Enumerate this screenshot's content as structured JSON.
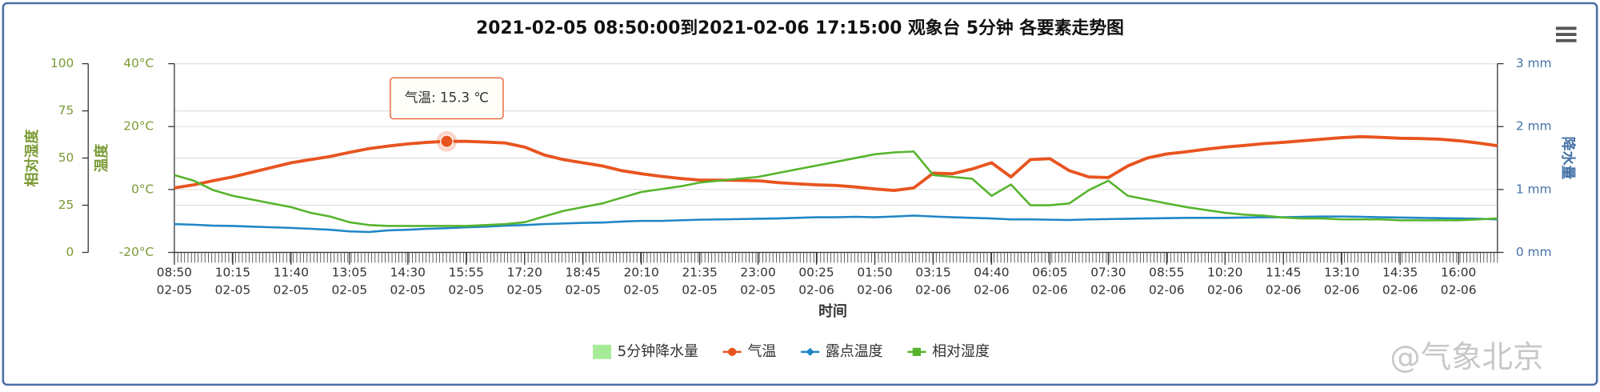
{
  "chart_data": {
    "type": "line",
    "title": "2021-02-05 08:50:00到2021-02-06 17:15:00 观象台 5分钟 各要素走势图",
    "x_label": "时间",
    "y_label": "温度",
    "y2_label": "降水量",
    "y3_label": "相对湿度",
    "categories": [
      "08:50",
      null,
      null,
      "10:15",
      null,
      null,
      "11:40",
      null,
      null,
      "13:05",
      null,
      null,
      "14:30",
      null,
      null,
      "15:55",
      null,
      null,
      "17:20",
      null,
      null,
      "18:45",
      null,
      null,
      "20:10",
      null,
      null,
      "21:35",
      null,
      null,
      "23:00",
      null,
      null,
      "00:25",
      null,
      null,
      "01:50",
      null,
      null,
      "03:15",
      null,
      null,
      "04:40",
      null,
      null,
      "06:05",
      null,
      null,
      "07:30",
      null,
      null,
      "08:55",
      null,
      null,
      "10:20",
      null,
      null,
      "11:45",
      null,
      null,
      "13:10",
      null,
      null,
      "14:35",
      null,
      null,
      "16:00",
      null,
      null
    ],
    "category_dates": [
      "02-05",
      null,
      null,
      "02-05",
      null,
      null,
      "02-05",
      null,
      null,
      "02-05",
      null,
      null,
      "02-05",
      null,
      null,
      "02-05",
      null,
      null,
      "02-05",
      null,
      null,
      "02-05",
      null,
      null,
      "02-05",
      null,
      null,
      "02-05",
      null,
      null,
      "02-05",
      null,
      null,
      "02-06",
      null,
      null,
      "02-06",
      null,
      null,
      "02-06",
      null,
      null,
      "02-06",
      null,
      null,
      "02-06",
      null,
      null,
      "02-06",
      null,
      null,
      "02-06",
      null,
      null,
      "02-06",
      null,
      null,
      "02-06",
      null,
      null,
      "02-06",
      null,
      null,
      "02-06",
      null,
      null,
      "02-06",
      null,
      null
    ],
    "ylim": [
      -20,
      40
    ],
    "yticks": [
      {
        "value": -20,
        "label": "-20°C"
      },
      {
        "value": 0,
        "label": "0°C"
      },
      {
        "value": 20,
        "label": "20°C"
      },
      {
        "value": 40,
        "label": "40°C"
      }
    ],
    "y2lim": [
      0,
      3
    ],
    "y2ticks": [
      {
        "value": 0,
        "label": "0 mm"
      },
      {
        "value": 1,
        "label": "1 mm"
      },
      {
        "value": 2,
        "label": "2 mm"
      },
      {
        "value": 3,
        "label": "3 mm"
      }
    ],
    "y3lim": [
      0,
      100
    ],
    "y3ticks": [
      0,
      25,
      50,
      75,
      100
    ],
    "grid": true,
    "legend": "bottom",
    "tooltip": "气温: 15.3 ℃",
    "watermark": "@气象北京",
    "series": [
      {
        "name": "5分钟降水量",
        "type": "bar",
        "axis": "y2",
        "color": "#a6ec98",
        "values": [
          0,
          0,
          0,
          0,
          0,
          0,
          0,
          0,
          0,
          0,
          0,
          0,
          0,
          0,
          0,
          0,
          0,
          0,
          0,
          0,
          0,
          0,
          0,
          0,
          0,
          0,
          0,
          0,
          0,
          0,
          0,
          0,
          0,
          0,
          0,
          0,
          0,
          0,
          0,
          0,
          0,
          0,
          0,
          0,
          0,
          0,
          0,
          0,
          0,
          0,
          0,
          0,
          0,
          0,
          0,
          0,
          0,
          0,
          0,
          0,
          0,
          0,
          0,
          0,
          0,
          0,
          0,
          0,
          0
        ]
      },
      {
        "name": "气温",
        "type": "line",
        "axis": "y",
        "color": "#e8541f",
        "marker": "circle",
        "values": [
          0.5,
          1.5,
          2.8,
          4,
          5.5,
          7,
          8.5,
          9.5,
          10.5,
          11.8,
          13,
          13.8,
          14.5,
          15,
          15.3,
          15.3,
          15.1,
          14.8,
          13.5,
          11,
          9.5,
          8.5,
          7.5,
          6,
          5,
          4.2,
          3.5,
          3,
          3,
          2.9,
          2.8,
          2.2,
          1.8,
          1.5,
          1.3,
          0.8,
          0.2,
          -0.3,
          0.5,
          5.2,
          5,
          6.5,
          8.5,
          4,
          9.5,
          9.8,
          6,
          4,
          3.8,
          7.5,
          10,
          11.3,
          12,
          12.8,
          13.5,
          14,
          14.6,
          15,
          15.5,
          16,
          16.5,
          16.8,
          16.6,
          16.3,
          16.2,
          16,
          15.5,
          14.8,
          13.9
        ]
      },
      {
        "name": "露点温度",
        "type": "line",
        "axis": "y",
        "color": "#1f86c6",
        "marker": "diamond",
        "values": [
          -11,
          -11.2,
          -11.5,
          -11.6,
          -11.8,
          -12,
          -12.2,
          -12.5,
          -12.8,
          -13.3,
          -13.5,
          -13,
          -12.8,
          -12.5,
          -12.3,
          -12,
          -11.8,
          -11.5,
          -11.3,
          -11,
          -10.8,
          -10.6,
          -10.5,
          -10.2,
          -10,
          -10,
          -9.8,
          -9.6,
          -9.5,
          -9.4,
          -9.3,
          -9.2,
          -9,
          -8.8,
          -8.8,
          -8.7,
          -8.8,
          -8.6,
          -8.3,
          -8.6,
          -8.8,
          -9,
          -9.2,
          -9.5,
          -9.5,
          -9.6,
          -9.7,
          -9.5,
          -9.4,
          -9.3,
          -9.2,
          -9.1,
          -9,
          -9,
          -9,
          -8.9,
          -8.8,
          -8.8,
          -8.7,
          -8.6,
          -8.6,
          -8.7,
          -8.8,
          -8.9,
          -9,
          -9.1,
          -9.2,
          -9.3,
          -9.5
        ]
      },
      {
        "name": "相对湿度",
        "type": "line",
        "axis": "y3",
        "color": "#56b42c",
        "marker": "square",
        "values": [
          41,
          38,
          33,
          30,
          28,
          26,
          24,
          21,
          19,
          16,
          14.5,
          14,
          14,
          14,
          14,
          14,
          14.5,
          15,
          16,
          19,
          22,
          24,
          26,
          29,
          32,
          33.5,
          35,
          37,
          38,
          39,
          40,
          42,
          44,
          46,
          48,
          50,
          52,
          53,
          53.5,
          41,
          40,
          39,
          30,
          36,
          25,
          25,
          26,
          33,
          38,
          30,
          28,
          26,
          24,
          22.5,
          21,
          20,
          19.5,
          18.5,
          18,
          18,
          17.5,
          17.5,
          17.5,
          17,
          17,
          17,
          17,
          17.5,
          18
        ]
      }
    ]
  }
}
